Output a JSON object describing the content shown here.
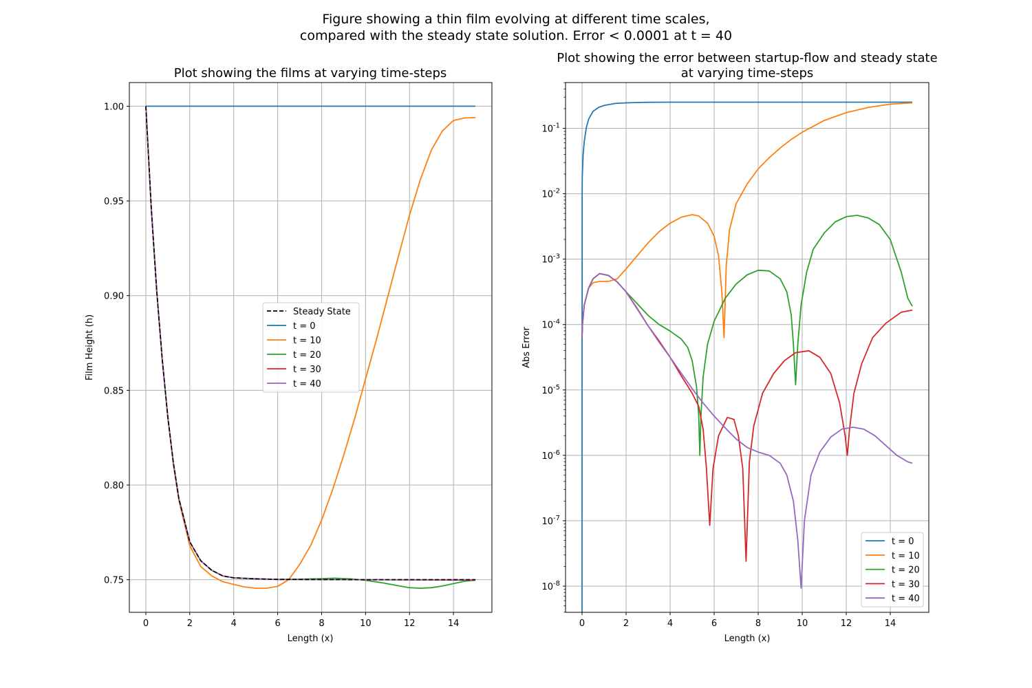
{
  "suptitle": {
    "line1": "Figure showing a thin film evolving at different time scales,",
    "line2": "compared with the steady state solution. Error < 0.0001 at t = 40"
  },
  "colors": {
    "steady": "#000000",
    "t0": "#1f77b4",
    "t10": "#ff7f0e",
    "t20": "#2ca02c",
    "t30": "#d62728",
    "t40": "#9467bd",
    "grid": "#b0b0b0"
  },
  "chart_data": [
    {
      "type": "line",
      "title": "Plot showing the films at varying time-steps",
      "xlabel": "Length (x)",
      "ylabel": "Film Height (h)",
      "xlim": [
        -0.75,
        15.75
      ],
      "ylim": [
        0.7328,
        1.0125
      ],
      "xticks": [
        0,
        2,
        4,
        6,
        8,
        10,
        12,
        14
      ],
      "yticks": [
        0.75,
        0.8,
        0.85,
        0.9,
        0.95,
        1.0
      ],
      "ytick_labels": [
        "0.75",
        "0.80",
        "0.85",
        "0.90",
        "0.95",
        "1.00"
      ],
      "grid": true,
      "legend_position": "center",
      "series": [
        {
          "name": "Steady State",
          "style": "dashed",
          "x": [
            0,
            0.25,
            0.5,
            0.75,
            1,
            1.25,
            1.5,
            2,
            2.5,
            3,
            3.5,
            4,
            5,
            6,
            8,
            10,
            12,
            15
          ],
          "y": [
            1.0,
            0.946,
            0.902,
            0.866,
            0.836,
            0.812,
            0.793,
            0.77,
            0.76,
            0.755,
            0.752,
            0.751,
            0.7505,
            0.7502,
            0.7501,
            0.75,
            0.75,
            0.75
          ]
        },
        {
          "name": "t = 0",
          "x": [
            0,
            15
          ],
          "y": [
            1.0,
            1.0
          ]
        },
        {
          "name": "t = 10",
          "x": [
            0,
            0.25,
            0.5,
            0.75,
            1,
            1.25,
            1.5,
            2,
            2.5,
            3,
            3.5,
            4,
            4.5,
            5,
            5.5,
            6,
            6.5,
            7,
            7.5,
            8,
            8.5,
            9,
            9.5,
            10,
            10.5,
            11,
            11.5,
            12,
            12.5,
            13,
            13.5,
            14,
            14.5,
            15
          ],
          "y": [
            1.0,
            0.946,
            0.902,
            0.866,
            0.836,
            0.811,
            0.792,
            0.768,
            0.757,
            0.752,
            0.749,
            0.7475,
            0.7462,
            0.7455,
            0.7455,
            0.7465,
            0.75,
            0.758,
            0.768,
            0.7815,
            0.7975,
            0.8155,
            0.835,
            0.856,
            0.877,
            0.899,
            0.921,
            0.9425,
            0.9615,
            0.977,
            0.987,
            0.9925,
            0.9938,
            0.994
          ]
        },
        {
          "name": "t = 20",
          "x": [
            0,
            0.25,
            0.5,
            0.75,
            1,
            1.25,
            1.5,
            2,
            2.5,
            3,
            3.5,
            4,
            5,
            6,
            7,
            8,
            8.6,
            9.3,
            10,
            10.7,
            11.4,
            12,
            12.5,
            13,
            13.5,
            14,
            14.5,
            15
          ],
          "y": [
            1.0,
            0.946,
            0.902,
            0.866,
            0.836,
            0.812,
            0.793,
            0.77,
            0.76,
            0.755,
            0.752,
            0.751,
            0.7505,
            0.7502,
            0.7503,
            0.7506,
            0.7508,
            0.7505,
            0.7497,
            0.7485,
            0.747,
            0.7458,
            0.7455,
            0.7458,
            0.7467,
            0.748,
            0.7492,
            0.7498
          ]
        },
        {
          "name": "t = 30",
          "x": [
            0,
            0.25,
            0.5,
            0.75,
            1,
            1.25,
            1.5,
            2,
            2.5,
            3,
            3.5,
            4,
            5,
            6,
            8,
            10,
            12,
            15
          ],
          "y": [
            1.0,
            0.946,
            0.902,
            0.866,
            0.836,
            0.812,
            0.793,
            0.77,
            0.76,
            0.755,
            0.752,
            0.751,
            0.7505,
            0.7501,
            0.7501,
            0.75,
            0.7499,
            0.7498
          ]
        },
        {
          "name": "t = 40",
          "x": [
            0,
            0.25,
            0.5,
            0.75,
            1,
            1.25,
            1.5,
            2,
            2.5,
            3,
            3.5,
            4,
            5,
            6,
            8,
            10,
            12,
            15
          ],
          "y": [
            1.0,
            0.946,
            0.902,
            0.866,
            0.836,
            0.812,
            0.793,
            0.77,
            0.76,
            0.755,
            0.752,
            0.751,
            0.7505,
            0.7502,
            0.7501,
            0.75,
            0.75,
            0.75
          ]
        }
      ]
    },
    {
      "type": "line",
      "title_line1": "Plot showing the error between startup-flow and steady state",
      "title_line2": "at varying time-steps",
      "xlabel": "Length (x)",
      "ylabel": "Abs Error",
      "yscale": "log",
      "xlim": [
        -0.75,
        15.75
      ],
      "ylim_log10": [
        -8.4,
        -0.3
      ],
      "xticks": [
        0,
        2,
        4,
        6,
        8,
        10,
        12,
        14
      ],
      "yticks_exp": [
        -8,
        -7,
        -6,
        -5,
        -4,
        -3,
        -2,
        -1
      ],
      "ytick_base": "10",
      "grid": true,
      "legend_position": "lower right",
      "series": [
        {
          "name": "t = 0",
          "x": [
            0,
            0.002,
            0.01,
            0.05,
            0.1,
            0.2,
            0.3,
            0.5,
            0.75,
            1,
            1.5,
            2,
            2.5,
            3,
            4,
            5,
            7,
            10,
            15
          ],
          "log10y": [
            -8.4,
            -2.0,
            -1.75,
            -1.4,
            -1.2,
            -0.98,
            -0.86,
            -0.74,
            -0.68,
            -0.65,
            -0.62,
            -0.61,
            -0.605,
            -0.602,
            -0.6,
            -0.6,
            -0.6,
            -0.6,
            -0.6
          ]
        },
        {
          "name": "t = 10",
          "x": [
            0,
            0.02,
            0.1,
            0.3,
            0.5,
            0.8,
            1.2,
            1.6,
            2,
            2.5,
            3,
            3.5,
            4,
            4.5,
            5,
            5.3,
            5.7,
            6,
            6.2,
            6.35,
            6.45,
            6.55,
            6.7,
            7,
            7.5,
            8,
            8.5,
            9,
            9.5,
            10,
            11,
            12,
            13,
            14,
            15
          ],
          "log10y": [
            -4.2,
            -4.0,
            -3.7,
            -3.44,
            -3.36,
            -3.34,
            -3.34,
            -3.3,
            -3.15,
            -2.95,
            -2.75,
            -2.58,
            -2.45,
            -2.36,
            -2.32,
            -2.34,
            -2.45,
            -2.65,
            -2.95,
            -3.5,
            -4.2,
            -3.1,
            -2.55,
            -2.15,
            -1.85,
            -1.62,
            -1.45,
            -1.3,
            -1.17,
            -1.06,
            -0.88,
            -0.76,
            -0.68,
            -0.63,
            -0.61
          ]
        },
        {
          "name": "t = 20",
          "x": [
            0,
            0.02,
            0.1,
            0.3,
            0.5,
            0.8,
            1.2,
            1.6,
            2,
            2.5,
            3,
            3.5,
            4,
            4.5,
            4.8,
            5.0,
            5.2,
            5.3,
            5.35,
            5.4,
            5.5,
            5.7,
            6,
            6.5,
            7,
            7.5,
            8,
            8.5,
            9,
            9.3,
            9.5,
            9.6,
            9.7,
            9.8,
            9.95,
            10.2,
            10.5,
            11,
            11.5,
            12,
            12.5,
            13,
            13.5,
            14,
            14.5,
            14.8,
            15
          ],
          "log10y": [
            -4.2,
            -4.0,
            -3.7,
            -3.44,
            -3.3,
            -3.22,
            -3.25,
            -3.35,
            -3.5,
            -3.68,
            -3.86,
            -4.0,
            -4.1,
            -4.22,
            -4.35,
            -4.55,
            -4.95,
            -5.4,
            -6.0,
            -5.4,
            -4.8,
            -4.3,
            -3.95,
            -3.6,
            -3.38,
            -3.24,
            -3.17,
            -3.18,
            -3.3,
            -3.5,
            -3.85,
            -4.3,
            -4.92,
            -4.3,
            -3.7,
            -3.2,
            -2.85,
            -2.6,
            -2.43,
            -2.35,
            -2.33,
            -2.37,
            -2.47,
            -2.7,
            -3.2,
            -3.6,
            -3.72
          ]
        },
        {
          "name": "t = 30",
          "x": [
            0,
            0.02,
            0.1,
            0.3,
            0.5,
            0.8,
            1.2,
            1.6,
            2,
            2.5,
            3,
            3.5,
            4,
            4.5,
            5,
            5.3,
            5.5,
            5.65,
            5.8,
            5.95,
            6.2,
            6.6,
            6.9,
            7.1,
            7.3,
            7.45,
            7.6,
            7.8,
            8.2,
            8.7,
            9.2,
            9.7,
            10.3,
            10.8,
            11.3,
            11.7,
            11.95,
            12.05,
            12.15,
            12.35,
            12.7,
            13.2,
            13.8,
            14.5,
            15
          ],
          "log10y": [
            -4.2,
            -4.0,
            -3.7,
            -3.44,
            -3.3,
            -3.22,
            -3.25,
            -3.35,
            -3.5,
            -3.75,
            -4.02,
            -4.25,
            -4.5,
            -4.78,
            -5.05,
            -5.25,
            -5.6,
            -6.2,
            -7.07,
            -6.2,
            -5.7,
            -5.42,
            -5.45,
            -5.7,
            -6.2,
            -7.62,
            -6.1,
            -5.55,
            -5.05,
            -4.75,
            -4.55,
            -4.43,
            -4.4,
            -4.5,
            -4.75,
            -5.2,
            -5.7,
            -6.0,
            -5.6,
            -5.05,
            -4.6,
            -4.2,
            -3.98,
            -3.81,
            -3.78
          ]
        },
        {
          "name": "t = 40",
          "x": [
            0,
            0.02,
            0.1,
            0.3,
            0.5,
            0.8,
            1.2,
            1.6,
            2,
            2.5,
            3,
            3.5,
            4,
            4.5,
            5,
            5.5,
            6,
            6.5,
            7,
            7.5,
            8,
            8.5,
            9,
            9.3,
            9.6,
            9.8,
            9.95,
            10.1,
            10.4,
            10.8,
            11.3,
            11.8,
            12.3,
            12.8,
            13.3,
            13.8,
            14.3,
            14.8,
            15
          ],
          "log10y": [
            -4.2,
            -4.0,
            -3.7,
            -3.44,
            -3.3,
            -3.22,
            -3.25,
            -3.35,
            -3.5,
            -3.76,
            -4.02,
            -4.27,
            -4.5,
            -4.74,
            -4.98,
            -5.2,
            -5.4,
            -5.58,
            -5.75,
            -5.88,
            -5.95,
            -6.0,
            -6.12,
            -6.3,
            -6.7,
            -7.3,
            -8.03,
            -7.0,
            -6.3,
            -5.95,
            -5.72,
            -5.6,
            -5.57,
            -5.6,
            -5.7,
            -5.85,
            -6.0,
            -6.1,
            -6.12
          ]
        }
      ]
    }
  ]
}
